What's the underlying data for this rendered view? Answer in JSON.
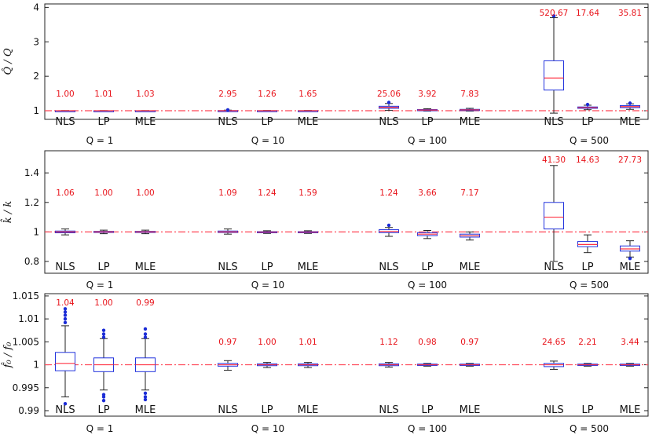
{
  "chart_data": [
    {
      "type": "box",
      "ylabel": "Q̂ / Q",
      "ylim": [
        0.75,
        4.1
      ],
      "yticks": [
        1,
        2,
        3,
        4
      ],
      "reference_line": 1,
      "groups": [
        "Q = 1",
        "Q = 10",
        "Q = 100",
        "Q = 500"
      ],
      "methods": [
        "NLS",
        "LP",
        "MLE"
      ],
      "ratios": [
        [
          "1.00",
          "1.01",
          "1.03"
        ],
        [
          "2.95",
          "1.26",
          "1.65"
        ],
        [
          "25.06",
          "3.92",
          "7.83"
        ],
        [
          "520.67",
          "17.64",
          "35.81"
        ]
      ],
      "boxes": [
        [
          {
            "q1": 0.998,
            "med": 1.0,
            "q3": 1.002,
            "wlo": 0.993,
            "whi": 1.007,
            "out": []
          },
          {
            "q1": 0.998,
            "med": 1.0,
            "q3": 1.002,
            "wlo": 0.994,
            "whi": 1.006,
            "out": []
          },
          {
            "q1": 0.998,
            "med": 1.0,
            "q3": 1.002,
            "wlo": 0.994,
            "whi": 1.006,
            "out": []
          }
        ],
        [
          {
            "q1": 0.995,
            "med": 1.0,
            "q3": 1.006,
            "wlo": 0.985,
            "whi": 1.018,
            "out": [
              1.025
            ]
          },
          {
            "q1": 0.997,
            "med": 1.0,
            "q3": 1.004,
            "wlo": 0.99,
            "whi": 1.01,
            "out": []
          },
          {
            "q1": 0.997,
            "med": 1.0,
            "q3": 1.004,
            "wlo": 0.99,
            "whi": 1.01,
            "out": []
          }
        ],
        [
          {
            "q1": 1.07,
            "med": 1.1,
            "q3": 1.13,
            "wlo": 1.01,
            "whi": 1.21,
            "out": [
              1.24
            ]
          },
          {
            "q1": 1.01,
            "med": 1.02,
            "q3": 1.035,
            "wlo": 0.99,
            "whi": 1.06,
            "out": []
          },
          {
            "q1": 1.01,
            "med": 1.025,
            "q3": 1.04,
            "wlo": 0.99,
            "whi": 1.07,
            "out": []
          }
        ],
        [
          {
            "q1": 1.6,
            "med": 1.95,
            "q3": 2.45,
            "wlo": 0.93,
            "whi": 3.7,
            "out": [
              3.75
            ]
          },
          {
            "q1": 1.07,
            "med": 1.09,
            "q3": 1.11,
            "wlo": 1.03,
            "whi": 1.16,
            "out": [
              1.18
            ]
          },
          {
            "q1": 1.09,
            "med": 1.12,
            "q3": 1.15,
            "wlo": 1.04,
            "whi": 1.2,
            "out": [
              1.22
            ]
          }
        ]
      ]
    },
    {
      "type": "box",
      "ylabel": "k̂ / k",
      "ylim": [
        0.72,
        1.55
      ],
      "yticks": [
        0.8,
        1,
        1.2,
        1.4
      ],
      "reference_line": 1,
      "groups": [
        "Q = 1",
        "Q = 10",
        "Q = 100",
        "Q = 500"
      ],
      "methods": [
        "NLS",
        "LP",
        "MLE"
      ],
      "ratios": [
        [
          "1.06",
          "1.00",
          "1.00"
        ],
        [
          "1.09",
          "1.24",
          "1.59"
        ],
        [
          "1.24",
          "3.66",
          "7.17"
        ],
        [
          "41.30",
          "14.63",
          "27.73"
        ]
      ],
      "boxes": [
        [
          {
            "q1": 0.994,
            "med": 1.0,
            "q3": 1.006,
            "wlo": 0.98,
            "whi": 1.02,
            "out": []
          },
          {
            "q1": 0.996,
            "med": 1.0,
            "q3": 1.004,
            "wlo": 0.988,
            "whi": 1.012,
            "out": []
          },
          {
            "q1": 0.996,
            "med": 1.0,
            "q3": 1.004,
            "wlo": 0.988,
            "whi": 1.012,
            "out": []
          }
        ],
        [
          {
            "q1": 0.996,
            "med": 1.0,
            "q3": 1.006,
            "wlo": 0.985,
            "whi": 1.02,
            "out": []
          },
          {
            "q1": 0.996,
            "med": 0.999,
            "q3": 1.002,
            "wlo": 0.99,
            "whi": 1.008,
            "out": []
          },
          {
            "q1": 0.996,
            "med": 0.999,
            "q3": 1.002,
            "wlo": 0.99,
            "whi": 1.008,
            "out": []
          }
        ],
        [
          {
            "q1": 0.995,
            "med": 1.003,
            "q3": 1.015,
            "wlo": 0.97,
            "whi": 1.03,
            "out": [
              1.045
            ]
          },
          {
            "q1": 0.975,
            "med": 0.985,
            "q3": 0.995,
            "wlo": 0.955,
            "whi": 1.01,
            "out": []
          },
          {
            "q1": 0.965,
            "med": 0.975,
            "q3": 0.985,
            "wlo": 0.945,
            "whi": 1.0,
            "out": []
          }
        ],
        [
          {
            "q1": 1.02,
            "med": 1.1,
            "q3": 1.2,
            "wlo": 0.8,
            "whi": 1.45,
            "out": []
          },
          {
            "q1": 0.9,
            "med": 0.915,
            "q3": 0.935,
            "wlo": 0.86,
            "whi": 0.98,
            "out": []
          },
          {
            "q1": 0.87,
            "med": 0.885,
            "q3": 0.905,
            "wlo": 0.83,
            "whi": 0.94,
            "out": [
              0.82
            ]
          }
        ]
      ]
    },
    {
      "type": "box",
      "ylabel": "f̂₀ / f₀",
      "ylim": [
        0.9888,
        1.0155
      ],
      "yticks": [
        0.99,
        0.995,
        1,
        1.005,
        1.01,
        1.015
      ],
      "reference_line": 1,
      "groups": [
        "Q = 1",
        "Q = 10",
        "Q = 100",
        "Q = 500"
      ],
      "methods": [
        "NLS",
        "LP",
        "MLE"
      ],
      "ratios": [
        [
          "1.04",
          "1.00",
          "0.99"
        ],
        [
          "0.97",
          "1.00",
          "1.01"
        ],
        [
          "1.12",
          "0.98",
          "0.97"
        ],
        [
          "24.65",
          "2.21",
          "3.44"
        ]
      ],
      "boxes": [
        [
          {
            "q1": 0.9987,
            "med": 1.0003,
            "q3": 1.0027,
            "wlo": 0.993,
            "whi": 1.0085,
            "out": [
              1.0092,
              1.01,
              1.0108,
              1.0115,
              1.0122,
              0.9915
            ]
          },
          {
            "q1": 0.9985,
            "med": 1.0,
            "q3": 1.0015,
            "wlo": 0.9945,
            "whi": 1.0057,
            "out": [
              1.006,
              1.0067,
              1.0075,
              0.9935,
              0.993,
              0.9922
            ]
          },
          {
            "q1": 0.9985,
            "med": 1.0,
            "q3": 1.0015,
            "wlo": 0.9945,
            "whi": 1.0057,
            "out": [
              1.006,
              1.0067,
              1.0078,
              0.9938,
              0.993,
              0.9924
            ]
          }
        ],
        [
          {
            "q1": 0.9997,
            "med": 1.0,
            "q3": 1.0003,
            "wlo": 0.9988,
            "whi": 1.0009,
            "out": []
          },
          {
            "q1": 0.9998,
            "med": 1.0,
            "q3": 1.0002,
            "wlo": 0.9994,
            "whi": 1.0005,
            "out": []
          },
          {
            "q1": 0.9998,
            "med": 1.0,
            "q3": 1.0002,
            "wlo": 0.9994,
            "whi": 1.0005,
            "out": []
          }
        ],
        [
          {
            "q1": 0.9998,
            "med": 1.0,
            "q3": 1.0002,
            "wlo": 0.9995,
            "whi": 1.0005,
            "out": []
          },
          {
            "q1": 0.99985,
            "med": 1.0,
            "q3": 1.00015,
            "wlo": 0.9997,
            "whi": 1.0003,
            "out": []
          },
          {
            "q1": 0.99985,
            "med": 1.0,
            "q3": 1.00015,
            "wlo": 0.9997,
            "whi": 1.0003,
            "out": []
          }
        ],
        [
          {
            "q1": 0.9996,
            "med": 1.0,
            "q3": 1.0003,
            "wlo": 0.999,
            "whi": 1.0008,
            "out": []
          },
          {
            "q1": 0.99985,
            "med": 1.0,
            "q3": 1.00015,
            "wlo": 0.9997,
            "whi": 1.0003,
            "out": []
          },
          {
            "q1": 0.99985,
            "med": 1.0,
            "q3": 1.00015,
            "wlo": 0.9997,
            "whi": 1.0003,
            "out": []
          }
        ]
      ]
    }
  ],
  "colors": {
    "box": "#2233dd",
    "median": "#ff3344",
    "ratio_text": "#e8141b",
    "reference_line": "#ff4455",
    "outlier": "#1a2bd6"
  }
}
